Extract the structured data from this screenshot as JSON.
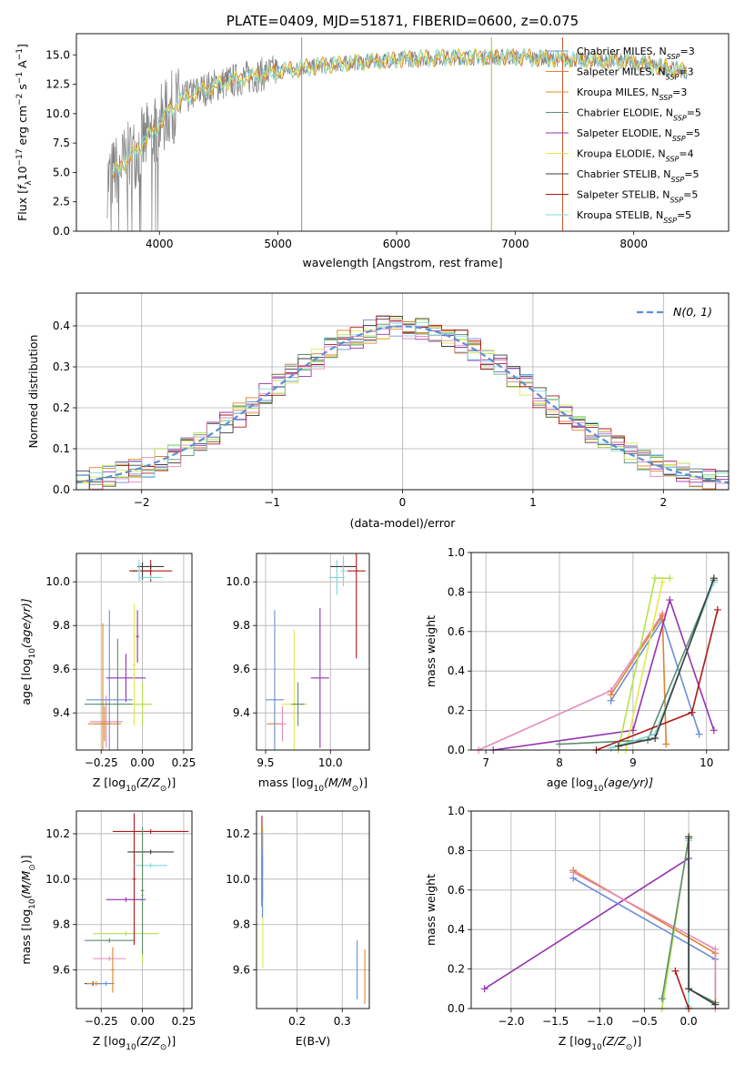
{
  "colors": {
    "Chabrier MILES": "#6a8fd8",
    "Salpeter MILES": "#e0822f",
    "Kroupa MILES": "#d5902a",
    "Chabrier ELODIE": "#5e8e6e",
    "Salpeter ELODIE": "#9533b0",
    "Kroupa ELODIE": "#e3e84b",
    "Chabrier STELIB": "#3d3d3d",
    "Salpeter STELIB": "#b01a1a",
    "Kroupa STELIB": "#7fd8d8",
    "pink": "#e38bbd",
    "lime": "#b5e34b",
    "normal": "#5b8fd4"
  },
  "chart_data": [
    {
      "id": "spectrum",
      "type": "line",
      "title": "PLATE=0409, MJD=51871, FIBERID=0600, z=0.075",
      "xlabel": "wavelength [Angstrom, rest frame]",
      "ylabel_parts": [
        "Flux [",
        "f",
        "λ",
        "10",
        "−17",
        " erg cm",
        "−2",
        " s",
        "−1",
        " A",
        "−1",
        "]"
      ],
      "xlim": [
        3300,
        8800
      ],
      "ylim": [
        0,
        16.8
      ],
      "xticks": [
        4000,
        5000,
        6000,
        7000,
        8000
      ],
      "yticks": [
        "0.0",
        "2.5",
        "5.0",
        "7.5",
        "10.0",
        "12.5",
        "15.0"
      ],
      "legend_position": "right",
      "legend": [
        {
          "name": "Chabrier MILES",
          "nssp": "3"
        },
        {
          "name": "Salpeter MILES",
          "nssp": "3"
        },
        {
          "name": "Kroupa MILES",
          "nssp": "3"
        },
        {
          "name": "Chabrier ELODIE",
          "nssp": "5"
        },
        {
          "name": "Salpeter ELODIE",
          "nssp": "5"
        },
        {
          "name": "Kroupa ELODIE",
          "nssp": "4"
        },
        {
          "name": "Chabrier STELIB",
          "nssp": "5"
        },
        {
          "name": "Salpeter STELIB",
          "nssp": "5"
        },
        {
          "name": "Kroupa STELIB",
          "nssp": "5"
        }
      ],
      "continuum": [
        [
          3560,
          4.3
        ],
        [
          3650,
          5.3
        ],
        [
          3800,
          6.8
        ],
        [
          3950,
          8.5
        ],
        [
          4100,
          10.5
        ],
        [
          4300,
          11.8
        ],
        [
          4500,
          12.5
        ],
        [
          4700,
          13.0
        ],
        [
          5000,
          13.6
        ],
        [
          5300,
          14.0
        ],
        [
          5600,
          14.3
        ],
        [
          6000,
          14.6
        ],
        [
          6500,
          14.8
        ],
        [
          7000,
          14.8
        ],
        [
          7500,
          14.6
        ],
        [
          8000,
          14.4
        ],
        [
          8500,
          13.5
        ]
      ],
      "data_range": [
        3560,
        8450
      ],
      "model_range": [
        3600,
        8450
      ],
      "spikes": [
        5200,
        6800,
        7400
      ]
    },
    {
      "id": "residuals",
      "type": "histogram",
      "xlabel": "(data-model)/error",
      "ylabel": "Normed distribution",
      "xlim": [
        -2.5,
        2.5
      ],
      "ylim": [
        0,
        0.48
      ],
      "xticks": [
        "−2",
        "−1",
        "0",
        "1",
        "2"
      ],
      "yticks": [
        "0.0",
        "0.1",
        "0.2",
        "0.3",
        "0.4"
      ],
      "bins_per_unit": 10,
      "legend_label": "N(0, 1)",
      "legend_position": "top-right"
    },
    {
      "id": "age_vs_Z",
      "type": "errorbar",
      "xlabel_parts": [
        "Z [log",
        "10",
        "(Z/Z",
        "⊙",
        ")]"
      ],
      "ylabel_parts": [
        "age  [log",
        "10",
        "(age/yr)]"
      ],
      "xlim": [
        -0.4,
        0.3
      ],
      "ylim": [
        9.23,
        10.13
      ],
      "xticks": [
        "−0.25",
        "0.00",
        "0.25"
      ],
      "xtick_vals": [
        -0.25,
        0.0,
        0.25
      ],
      "yticks": [
        "9.4",
        "9.6",
        "9.8",
        "10.0"
      ],
      "ytick_vals": [
        9.4,
        9.6,
        9.8,
        10.0
      ],
      "points": [
        {
          "x": -0.22,
          "y": 9.36,
          "xerr": 0.1,
          "yerr": 0.12,
          "c": "pink"
        },
        {
          "x": -0.23,
          "y": 9.35,
          "xerr": 0.1,
          "yerr": 0.08,
          "c": "Salpeter MILES"
        },
        {
          "x": -0.24,
          "y": 9.35,
          "xerr": 0.05,
          "yerr": 0.46,
          "c": "Kroupa MILES"
        },
        {
          "x": -0.2,
          "y": 9.46,
          "xerr": 0.14,
          "yerr": 0.41,
          "c": "Chabrier MILES"
        },
        {
          "x": -0.15,
          "y": 9.44,
          "xerr": 0.2,
          "yerr": 0.3,
          "c": "Chabrier ELODIE"
        },
        {
          "x": 0.0,
          "y": 9.44,
          "xerr": 0.06,
          "yerr": 0.1,
          "c": "lime"
        },
        {
          "x": -0.1,
          "y": 9.56,
          "xerr": 0.12,
          "yerr": 0.11,
          "c": "Salpeter ELODIE"
        },
        {
          "x": -0.05,
          "y": 9.62,
          "xerr": 0.01,
          "yerr": 0.28,
          "c": "Kroupa ELODIE"
        },
        {
          "x": -0.03,
          "y": 9.75,
          "xerr": 0.01,
          "yerr": 0.12,
          "c": "Salpeter ELODIE"
        },
        {
          "x": 0.0,
          "y": 10.05,
          "xerr": 0.06,
          "yerr": 0.04,
          "c": "Chabrier STELIB"
        },
        {
          "x": 0.05,
          "y": 10.05,
          "xerr": 0.13,
          "yerr": 0.05,
          "c": "Salpeter STELIB"
        },
        {
          "x": 0.05,
          "y": 10.07,
          "xerr": 0.08,
          "yerr": 0.01,
          "c": "Chabrier STELIB"
        },
        {
          "x": 0.05,
          "y": 10.02,
          "xerr": 0.07,
          "yerr": 0.01,
          "c": "Kroupa STELIB"
        },
        {
          "x": -0.02,
          "y": 10.05,
          "xerr": 0.01,
          "yerr": 0.05,
          "c": "Kroupa STELIB"
        }
      ]
    },
    {
      "id": "age_vs_mass",
      "type": "errorbar",
      "xlabel_parts": [
        "mass [log",
        "10",
        "(M/M",
        "⊙",
        ")]"
      ],
      "ylabel_parts": [],
      "xlim": [
        9.43,
        10.3
      ],
      "ylim": [
        9.23,
        10.13
      ],
      "xticks": [
        "9.5",
        "10.0"
      ],
      "xtick_vals": [
        9.5,
        10.0
      ],
      "yticks": [
        "9.4",
        "9.6",
        "9.8",
        "10.0"
      ],
      "ytick_vals": [
        9.4,
        9.6,
        9.8,
        10.0
      ],
      "points": [
        {
          "x": 9.57,
          "y": 9.35,
          "xerr": 0.06,
          "yerr": 0.08,
          "c": "Salpeter MILES"
        },
        {
          "x": 9.57,
          "y": 9.46,
          "xerr": 0.07,
          "yerr": 0.41,
          "c": "Chabrier MILES"
        },
        {
          "x": 9.63,
          "y": 9.35,
          "xerr": 0.03,
          "yerr": 0.08,
          "c": "pink"
        },
        {
          "x": 9.72,
          "y": 9.44,
          "xerr": 0.1,
          "yerr": 0.34,
          "c": "Kroupa ELODIE"
        },
        {
          "x": 9.75,
          "y": 9.44,
          "xerr": 0.05,
          "yerr": 0.1,
          "c": "Chabrier ELODIE"
        },
        {
          "x": 9.92,
          "y": 9.56,
          "xerr": 0.07,
          "yerr": 0.32,
          "c": "Salpeter ELODIE"
        },
        {
          "x": 10.05,
          "y": 10.02,
          "xerr": 0.06,
          "yerr": 0.08,
          "c": "Kroupa STELIB"
        },
        {
          "x": 10.2,
          "y": 10.05,
          "xerr": 0.07,
          "yerr": 0.4,
          "c": "Salpeter STELIB"
        },
        {
          "x": 10.1,
          "y": 10.07,
          "xerr": 0.1,
          "yerr": 0.03,
          "c": "Chabrier STELIB"
        },
        {
          "x": 10.1,
          "y": 10.05,
          "xerr": 0.02,
          "yerr": 0.07,
          "c": "Kroupa STELIB"
        }
      ]
    },
    {
      "id": "massweight_vs_age",
      "type": "line",
      "xlabel_parts": [
        "age  [log",
        "10",
        "(age/yr)]"
      ],
      "ylabel": "mass weight",
      "xlim": [
        6.8,
        10.3
      ],
      "ylim": [
        0,
        1
      ],
      "xticks": [
        "7",
        "8",
        "9",
        "10"
      ],
      "xtick_vals": [
        7,
        8,
        9,
        10
      ],
      "yticks": [
        "0.0",
        "0.2",
        "0.4",
        "0.6",
        "0.8",
        "1.0"
      ],
      "ytick_vals": [
        0,
        0.2,
        0.4,
        0.6,
        0.8,
        1.0
      ],
      "series": [
        {
          "c": "pink",
          "pts": [
            [
              6.9,
              0.0
            ],
            [
              8.7,
              0.3
            ],
            [
              9.4,
              0.69
            ]
          ]
        },
        {
          "c": "Chabrier MILES",
          "pts": [
            [
              8.7,
              0.25
            ],
            [
              9.4,
              0.66
            ],
            [
              9.9,
              0.08
            ]
          ]
        },
        {
          "c": "Salpeter MILES",
          "pts": [
            [
              8.7,
              0.28
            ],
            [
              9.4,
              0.68
            ],
            [
              9.45,
              0.03
            ]
          ]
        },
        {
          "c": "Salpeter ELODIE",
          "pts": [
            [
              7.1,
              0.0
            ],
            [
              9.0,
              0.1
            ],
            [
              9.5,
              0.76
            ],
            [
              10.1,
              0.1
            ]
          ]
        },
        {
          "c": "lime",
          "pts": [
            [
              8.8,
              0.0
            ],
            [
              9.3,
              0.87
            ],
            [
              9.5,
              0.87
            ]
          ]
        },
        {
          "c": "Kroupa ELODIE",
          "pts": [
            [
              8.9,
              0.0
            ],
            [
              9.4,
              0.85
            ]
          ]
        },
        {
          "c": "Chabrier ELODIE",
          "pts": [
            [
              8.0,
              0.03
            ],
            [
              9.2,
              0.05
            ],
            [
              10.1,
              0.86
            ]
          ]
        },
        {
          "c": "Salpeter STELIB",
          "pts": [
            [
              8.5,
              0.0
            ],
            [
              9.8,
              0.19
            ],
            [
              10.15,
              0.71
            ]
          ]
        },
        {
          "c": "Kroupa STELIB",
          "pts": [
            [
              8.7,
              0.01
            ],
            [
              9.3,
              0.08
            ],
            [
              10.1,
              0.85
            ]
          ]
        },
        {
          "c": "Chabrier STELIB",
          "pts": [
            [
              8.8,
              0.02
            ],
            [
              9.3,
              0.06
            ],
            [
              10.1,
              0.87
            ]
          ]
        }
      ]
    },
    {
      "id": "mass_vs_Z",
      "type": "errorbar",
      "xlabel_parts": [
        "Z [log",
        "10",
        "(Z/Z",
        "⊙",
        ")]"
      ],
      "ylabel_parts": [
        "mass [log",
        "10",
        "(M/M",
        "⊙",
        ")]"
      ],
      "xlim": [
        -0.4,
        0.3
      ],
      "ylim": [
        9.43,
        10.3
      ],
      "xticks": [
        "−0.25",
        "0.00",
        "0.25"
      ],
      "xtick_vals": [
        -0.25,
        0.0,
        0.25
      ],
      "yticks": [
        "9.6",
        "9.8",
        "10.0",
        "10.2"
      ],
      "ytick_vals": [
        9.6,
        9.8,
        10.0,
        10.2
      ],
      "points": [
        {
          "x": -0.3,
          "y": 9.54,
          "xerr": 0.05,
          "yerr": 0.01,
          "c": "Chabrier STELIB"
        },
        {
          "x": -0.28,
          "y": 9.54,
          "xerr": 0.06,
          "yerr": 0.01,
          "c": "Salpeter MILES"
        },
        {
          "x": -0.22,
          "y": 9.54,
          "xerr": 0.05,
          "yerr": 0.01,
          "c": "Chabrier MILES"
        },
        {
          "x": -0.2,
          "y": 9.65,
          "xerr": 0.1,
          "yerr": 0.01,
          "c": "pink"
        },
        {
          "x": -0.18,
          "y": 9.6,
          "xerr": 0.01,
          "yerr": 0.1,
          "c": "Salpeter MILES"
        },
        {
          "x": -0.2,
          "y": 9.73,
          "xerr": 0.15,
          "yerr": 0.01,
          "c": "Chabrier ELODIE"
        },
        {
          "x": -0.1,
          "y": 9.76,
          "xerr": 0.2,
          "yerr": 0.01,
          "c": "lime"
        },
        {
          "x": -0.1,
          "y": 9.91,
          "xerr": 0.12,
          "yerr": 0.01,
          "c": "Salpeter ELODIE"
        },
        {
          "x": 0.0,
          "y": 9.93,
          "xerr": 0.01,
          "yerr": 0.3,
          "c": "lime"
        },
        {
          "x": -0.05,
          "y": 10.0,
          "xerr": 0.01,
          "yerr": 0.29,
          "c": "Salpeter STELIB"
        },
        {
          "x": 0.05,
          "y": 10.21,
          "xerr": 0.23,
          "yerr": 0.01,
          "c": "Salpeter STELIB"
        },
        {
          "x": 0.05,
          "y": 10.12,
          "xerr": 0.14,
          "yerr": 0.01,
          "c": "Chabrier STELIB"
        },
        {
          "x": 0.05,
          "y": 10.06,
          "xerr": 0.1,
          "yerr": 0.01,
          "c": "Kroupa STELIB"
        },
        {
          "x": 0.0,
          "y": 9.95,
          "xerr": 0.01,
          "yerr": 0.28,
          "c": "Chabrier ELODIE"
        }
      ]
    },
    {
      "id": "mass_vs_ebv",
      "type": "errorbar",
      "xlabel": "E(B-V)",
      "xlim": [
        0.11,
        0.36
      ],
      "ylim": [
        9.43,
        10.3
      ],
      "xticks": [
        "0.2",
        "0.3"
      ],
      "xtick_vals": [
        0.2,
        0.3
      ],
      "yticks": [
        "9.6",
        "9.8",
        "10.0",
        "10.2"
      ],
      "ytick_vals": [
        9.6,
        9.8,
        10.0,
        10.2
      ],
      "points": [
        {
          "x": 0.122,
          "y": 10.08,
          "xerr": 0.0,
          "yerr": 0.2,
          "c": "Salpeter STELIB"
        },
        {
          "x": 0.124,
          "y": 9.92,
          "xerr": 0.0,
          "yerr": 0.31,
          "c": "Kroupa ELODIE"
        },
        {
          "x": 0.124,
          "y": 10.06,
          "xerr": 0.0,
          "yerr": 0.15,
          "c": "Kroupa STELIB"
        },
        {
          "x": 0.123,
          "y": 9.98,
          "xerr": 0.0,
          "yerr": 0.15,
          "c": "Chabrier MILES"
        },
        {
          "x": 0.333,
          "y": 9.6,
          "xerr": 0.0,
          "yerr": 0.13,
          "c": "Chabrier MILES"
        },
        {
          "x": 0.35,
          "y": 9.57,
          "xerr": 0.0,
          "yerr": 0.12,
          "c": "Salpeter MILES"
        }
      ]
    },
    {
      "id": "massweight_vs_Z",
      "type": "line",
      "xlabel_parts": [
        "Z [log",
        "10",
        "(Z/Z",
        "⊙",
        ")]"
      ],
      "ylabel": "mass weight",
      "xlim": [
        -2.45,
        0.45
      ],
      "ylim": [
        0,
        1
      ],
      "xticks": [
        "−2.0",
        "−1.5",
        "−1.0",
        "−0.5",
        "0.0"
      ],
      "xtick_vals": [
        -2.0,
        -1.5,
        -1.0,
        -0.5,
        0.0
      ],
      "yticks": [
        "0.0",
        "0.2",
        "0.4",
        "0.6",
        "0.8",
        "1.0"
      ],
      "ytick_vals": [
        0,
        0.2,
        0.4,
        0.6,
        0.8,
        1.0
      ],
      "series": [
        {
          "c": "Salpeter ELODIE",
          "pts": [
            [
              -2.3,
              0.1
            ],
            [
              0.0,
              0.76
            ]
          ]
        },
        {
          "c": "Chabrier MILES",
          "pts": [
            [
              -1.3,
              0.66
            ],
            [
              0.3,
              0.25
            ]
          ]
        },
        {
          "c": "Salpeter MILES",
          "pts": [
            [
              -1.3,
              0.7
            ],
            [
              0.3,
              0.28
            ],
            [
              0.3,
              0.03
            ]
          ]
        },
        {
          "c": "pink",
          "pts": [
            [
              -1.3,
              0.69
            ],
            [
              0.3,
              0.3
            ],
            [
              0.3,
              0.0
            ]
          ]
        },
        {
          "c": "lime",
          "pts": [
            [
              -0.3,
              0.0
            ],
            [
              0.0,
              0.87
            ]
          ]
        },
        {
          "c": "Kroupa STELIB",
          "pts": [
            [
              0.0,
              0.85
            ],
            [
              0.0,
              0.01
            ]
          ]
        },
        {
          "c": "Chabrier ELODIE",
          "pts": [
            [
              -0.3,
              0.05
            ],
            [
              0.0,
              0.86
            ],
            [
              0.0,
              0.1
            ],
            [
              0.3,
              0.03
            ]
          ]
        },
        {
          "c": "Salpeter STELIB",
          "pts": [
            [
              -0.15,
              0.19
            ],
            [
              0.0,
              0.0
            ]
          ]
        },
        {
          "c": "Chabrier STELIB",
          "pts": [
            [
              0.0,
              0.87
            ],
            [
              0.0,
              0.1
            ],
            [
              0.3,
              0.02
            ]
          ]
        }
      ]
    }
  ]
}
